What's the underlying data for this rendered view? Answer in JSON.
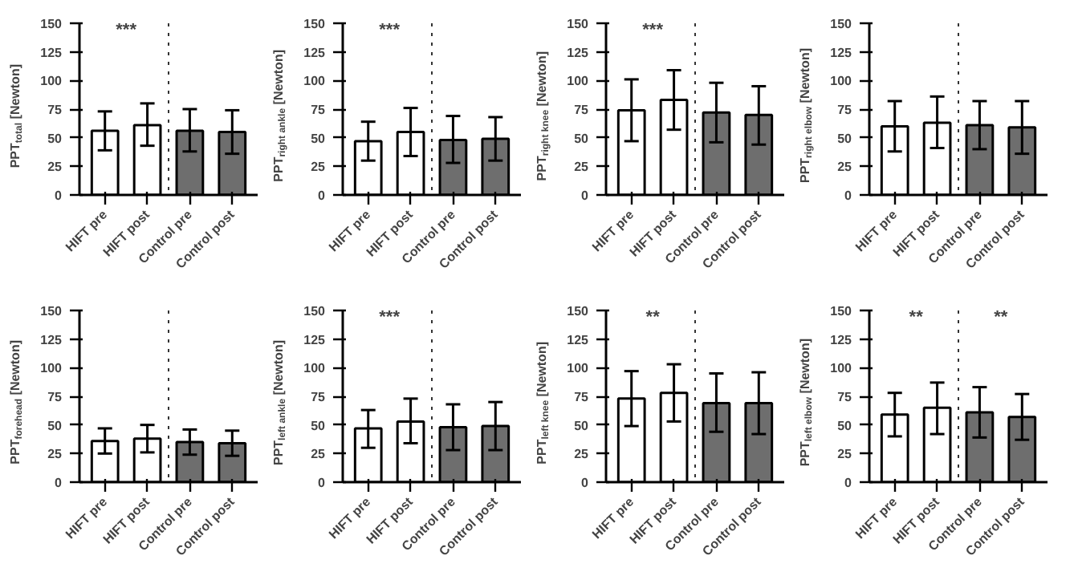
{
  "chart_data": [
    {
      "type": "bar",
      "ylabel": "PPT$_{total}$ [Newton]",
      "categories": [
        "HIFT pre",
        "HIFT post",
        "Control pre",
        "Control post"
      ],
      "values": [
        56,
        61,
        56,
        55
      ],
      "errors": [
        [
          39,
          73
        ],
        [
          43,
          80
        ],
        [
          38,
          75
        ],
        [
          36,
          74
        ]
      ],
      "colors": [
        "#ffffff",
        "#ffffff",
        "#6e6e6e",
        "#6e6e6e"
      ],
      "ylim": [
        0,
        150
      ],
      "yticks": [
        0,
        25,
        50,
        75,
        100,
        125,
        150
      ],
      "grid": false,
      "annotations": [
        "***"
      ]
    },
    {
      "type": "bar",
      "ylabel": "PPT$_{right ankle}$ [Newton]",
      "categories": [
        "HIFT pre",
        "HIFT post",
        "Control pre",
        "Control post"
      ],
      "values": [
        47,
        55,
        48,
        49
      ],
      "errors": [
        [
          30,
          64
        ],
        [
          34,
          76
        ],
        [
          28,
          69
        ],
        [
          30,
          68
        ]
      ],
      "colors": [
        "#ffffff",
        "#ffffff",
        "#6e6e6e",
        "#6e6e6e"
      ],
      "ylim": [
        0,
        150
      ],
      "yticks": [
        0,
        25,
        50,
        75,
        100,
        125,
        150
      ],
      "grid": false,
      "annotations": [
        "***"
      ]
    },
    {
      "type": "bar",
      "ylabel": "PPT$_{right knee}$ [Newton]",
      "categories": [
        "HIFT pre",
        "HIFT post",
        "Control pre",
        "Control post"
      ],
      "values": [
        74,
        83,
        72,
        70
      ],
      "errors": [
        [
          47,
          101
        ],
        [
          57,
          109
        ],
        [
          46,
          98
        ],
        [
          44,
          95
        ]
      ],
      "colors": [
        "#ffffff",
        "#ffffff",
        "#6e6e6e",
        "#6e6e6e"
      ],
      "ylim": [
        0,
        150
      ],
      "yticks": [
        0,
        25,
        50,
        75,
        100,
        125,
        150
      ],
      "grid": false,
      "annotations": [
        "***"
      ]
    },
    {
      "type": "bar",
      "ylabel": "PPT$_{right elbow}$ [Newton]",
      "categories": [
        "HIFT pre",
        "HIFT post",
        "Control pre",
        "Control post"
      ],
      "values": [
        60,
        63,
        61,
        59
      ],
      "errors": [
        [
          38,
          82
        ],
        [
          41,
          86
        ],
        [
          40,
          82
        ],
        [
          36,
          82
        ]
      ],
      "colors": [
        "#ffffff",
        "#ffffff",
        "#6e6e6e",
        "#6e6e6e"
      ],
      "ylim": [
        0,
        150
      ],
      "yticks": [
        0,
        25,
        50,
        75,
        100,
        125,
        150
      ],
      "grid": false
    },
    {
      "type": "bar",
      "ylabel": "PPT$_{forehead}$ [Newton]",
      "categories": [
        "HIFT pre",
        "HIFT post",
        "Control pre",
        "Control post"
      ],
      "values": [
        36,
        38,
        35,
        34
      ],
      "errors": [
        [
          25,
          47
        ],
        [
          26,
          50
        ],
        [
          24,
          46
        ],
        [
          23,
          45
        ]
      ],
      "colors": [
        "#ffffff",
        "#ffffff",
        "#6e6e6e",
        "#6e6e6e"
      ],
      "ylim": [
        0,
        150
      ],
      "yticks": [
        0,
        25,
        50,
        75,
        100,
        125,
        150
      ],
      "grid": false
    },
    {
      "type": "bar",
      "ylabel": "PPT$_{left ankle}$ [Newton]",
      "categories": [
        "HIFT pre",
        "HIFT post",
        "Control pre",
        "Control post"
      ],
      "values": [
        47,
        53,
        48,
        49
      ],
      "errors": [
        [
          30,
          63
        ],
        [
          34,
          73
        ],
        [
          28,
          68
        ],
        [
          28,
          70
        ]
      ],
      "colors": [
        "#ffffff",
        "#ffffff",
        "#6e6e6e",
        "#6e6e6e"
      ],
      "ylim": [
        0,
        150
      ],
      "yticks": [
        0,
        25,
        50,
        75,
        100,
        125,
        150
      ],
      "grid": false,
      "annotations": [
        "***"
      ]
    },
    {
      "type": "bar",
      "ylabel": "PPT$_{left knee}$ [Newton]",
      "categories": [
        "HIFT pre",
        "HIFT post",
        "Control pre",
        "Control post"
      ],
      "values": [
        73,
        78,
        69,
        69
      ],
      "errors": [
        [
          49,
          97
        ],
        [
          53,
          103
        ],
        [
          44,
          95
        ],
        [
          42,
          96
        ]
      ],
      "colors": [
        "#ffffff",
        "#ffffff",
        "#6e6e6e",
        "#6e6e6e"
      ],
      "ylim": [
        0,
        150
      ],
      "yticks": [
        0,
        25,
        50,
        75,
        100,
        125,
        150
      ],
      "grid": false,
      "annotations": [
        "**"
      ]
    },
    {
      "type": "bar",
      "ylabel": "PPT$_{left elbow}$ [Newton]",
      "categories": [
        "HIFT pre",
        "HIFT post",
        "Control pre",
        "Control post"
      ],
      "values": [
        59,
        65,
        61,
        57
      ],
      "errors": [
        [
          40,
          78
        ],
        [
          42,
          87
        ],
        [
          39,
          83
        ],
        [
          37,
          77
        ]
      ],
      "colors": [
        "#ffffff",
        "#ffffff",
        "#6e6e6e",
        "#6e6e6e"
      ],
      "ylim": [
        0,
        150
      ],
      "yticks": [
        0,
        25,
        50,
        75,
        100,
        125,
        150
      ],
      "grid": false,
      "annotations": [
        "**",
        "**"
      ]
    }
  ]
}
